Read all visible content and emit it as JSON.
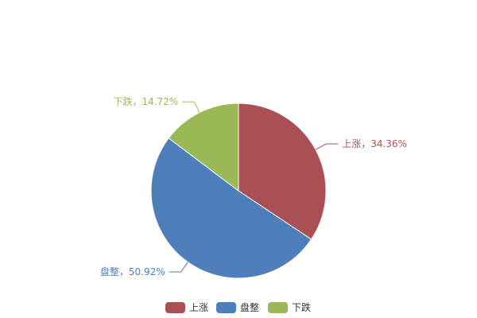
{
  "chart_data": {
    "type": "pie",
    "title": "",
    "slices": [
      {
        "name": "上涨",
        "value": 34.36,
        "label": "上涨，34.36%",
        "color": "#AA5055"
      },
      {
        "name": "盘整",
        "value": 50.92,
        "label": "盘整，50.92%",
        "color": "#4E7FBB"
      },
      {
        "name": "下跌",
        "value": 14.72,
        "label": "下跌，14.72%",
        "color": "#9BB857"
      }
    ],
    "start": "top",
    "direction": "clockwise",
    "legend_placement": "bottom-center"
  }
}
